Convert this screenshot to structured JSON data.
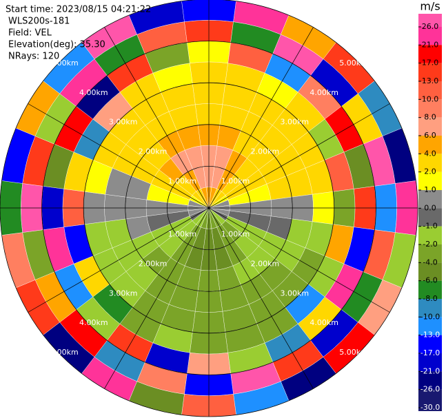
{
  "chart_data": {
    "type": "ppi",
    "header": [
      "Start time: 2023/08/15 04:21:22",
      "WLS200s-181",
      "Field: VEL",
      "Elevation(deg): 35.30",
      "NRays: 120"
    ],
    "rlim": [
      0,
      5
    ],
    "rings": [
      {
        "value": 1,
        "label": "1.00km"
      },
      {
        "value": 2,
        "label": "2.00km"
      },
      {
        "value": 3,
        "label": "3.00km"
      },
      {
        "value": 4,
        "label": "4.00km"
      },
      {
        "value": 5,
        "label": "5.00km"
      }
    ],
    "azimuths": [
      0,
      15,
      30,
      45,
      60,
      75,
      90,
      105,
      120,
      135,
      150,
      165,
      180,
      195,
      210,
      225,
      240,
      255,
      270,
      285,
      300,
      315,
      330,
      345
    ],
    "values": [
      [
        4,
        6,
        6,
        4,
        2,
        2,
        2,
        1,
        13,
        -17
      ],
      [
        4,
        6,
        6,
        4,
        2,
        2,
        2,
        10,
        -8,
        21
      ],
      [
        2,
        4,
        4,
        2,
        2,
        2,
        1,
        -13,
        26,
        4
      ],
      [
        2,
        2,
        2,
        2,
        2,
        2,
        2,
        8,
        -21,
        13
      ],
      [
        1,
        2,
        2,
        2,
        2,
        2,
        -2,
        17,
        2,
        -10
      ],
      [
        0,
        1,
        1,
        2,
        2,
        2,
        10,
        -6,
        26,
        -26
      ],
      [
        0,
        0,
        0,
        0,
        0,
        1,
        -4,
        13,
        -13,
        21
      ],
      [
        0,
        -1,
        -1,
        -1,
        -2,
        -2,
        4,
        -17,
        10,
        -2
      ],
      [
        -1,
        -2,
        -2,
        -2,
        -2,
        -4,
        -2,
        21,
        -8,
        6
      ],
      [
        -2,
        -4,
        -2,
        -2,
        -4,
        -4,
        -13,
        2,
        -21,
        17
      ],
      [
        -4,
        -4,
        -4,
        -2,
        -4,
        -4,
        -4,
        -10,
        13,
        -26
      ],
      [
        -4,
        -6,
        -6,
        -4,
        -4,
        -4,
        -4,
        -2,
        26,
        -13
      ],
      [
        -4,
        -6,
        -6,
        -4,
        -4,
        -4,
        -4,
        6,
        -17,
        10
      ],
      [
        -4,
        -6,
        -6,
        -4,
        -4,
        -4,
        -2,
        -21,
        8,
        -6
      ],
      [
        -2,
        -4,
        -4,
        -4,
        -4,
        -4,
        -4,
        13,
        -10,
        21
      ],
      [
        -2,
        -2,
        -2,
        -4,
        -2,
        -2,
        -8,
        -2,
        17,
        -26
      ],
      [
        -1,
        -2,
        -2,
        -2,
        -2,
        -2,
        2,
        -13,
        4,
        13
      ],
      [
        0,
        -1,
        -1,
        0,
        -2,
        -2,
        -17,
        21,
        -4,
        8
      ],
      [
        0,
        0,
        0,
        0,
        0,
        0,
        10,
        -21,
        26,
        -8
      ],
      [
        0,
        1,
        1,
        0,
        0,
        1,
        2,
        -6,
        13,
        -17
      ],
      [
        1,
        2,
        2,
        2,
        2,
        2,
        -10,
        17,
        -2,
        4
      ],
      [
        2,
        2,
        4,
        2,
        2,
        2,
        6,
        -26,
        21,
        -13
      ],
      [
        2,
        4,
        6,
        4,
        2,
        2,
        2,
        13,
        -8,
        26
      ],
      [
        4,
        6,
        6,
        4,
        2,
        2,
        1,
        -4,
        10,
        -21
      ]
    ],
    "colorbar": {
      "label": "m/s",
      "ticks": [
        {
          "value": 26,
          "label": "26.0"
        },
        {
          "value": 21,
          "label": "21.0"
        },
        {
          "value": 17,
          "label": "17.0"
        },
        {
          "value": 13,
          "label": "13.0"
        },
        {
          "value": 10,
          "label": "10.0"
        },
        {
          "value": 8,
          "label": "8.0"
        },
        {
          "value": 6,
          "label": "6.0"
        },
        {
          "value": 4,
          "label": "4.0"
        },
        {
          "value": 2,
          "label": "2.0"
        },
        {
          "value": 1,
          "label": "1.0"
        },
        {
          "value": 0,
          "label": "0.0"
        },
        {
          "value": -1,
          "label": "-1.0"
        },
        {
          "value": -2,
          "label": "-2.0"
        },
        {
          "value": -4,
          "label": "-4.0"
        },
        {
          "value": -6,
          "label": "-6.0"
        },
        {
          "value": -8,
          "label": "-8.0"
        },
        {
          "value": -10,
          "label": "-10.0"
        },
        {
          "value": -13,
          "label": "-13.0"
        },
        {
          "value": -17,
          "label": "-17.0"
        },
        {
          "value": -21,
          "label": "-21.0"
        },
        {
          "value": -26,
          "label": "-26.0"
        },
        {
          "value": -30,
          "label": "-30.0"
        }
      ],
      "colors": [
        "#ff55aa",
        "#ff3399",
        "#ff0000",
        "#ff3a1a",
        "#ff6040",
        "#ff7f60",
        "#ff9f80",
        "#ffa500",
        "#ffd700",
        "#ffff00",
        "#8c8c8c",
        "#696969",
        "#9acd32",
        "#7ba428",
        "#6b8e23",
        "#228b22",
        "#2e8bc0",
        "#1e90ff",
        "#0000ff",
        "#0000cd",
        "#000080",
        "#191970"
      ]
    }
  }
}
